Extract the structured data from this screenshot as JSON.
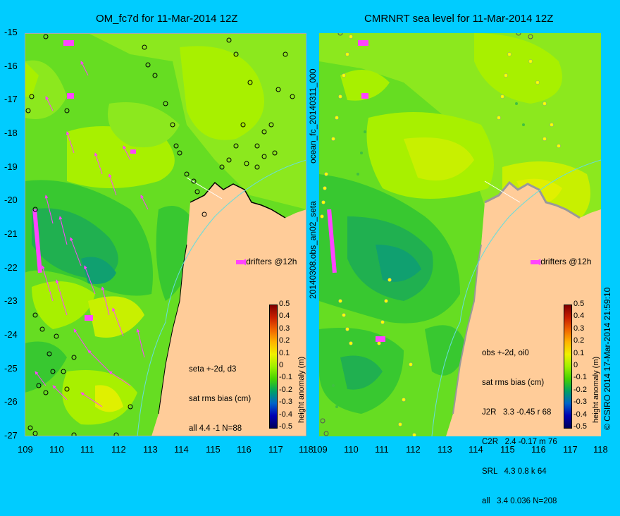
{
  "left_panel": {
    "title": "OM_fc7d for 11-Mar-2014 12Z",
    "stats": [
      "seta +-2d, d3",
      "sat rms bias (cm)",
      "all 4.4 -1 N=88"
    ],
    "drifter_label": "drifters @12h"
  },
  "right_panel": {
    "title": "CMRNRT sea level  for 11-Mar-2014 12Z",
    "stats": [
      "obs +-2d, oi0",
      "sat rms bias (cm)",
      "J2R   3.3 -0.45 r 68",
      "C2R   2.4 -0.17 m 76",
      "SRL   4.3 0.8 k 64",
      "all   3.4 0.036 N=208"
    ],
    "drifter_label": "drifters @12h"
  },
  "side_labels": {
    "left_top": "ocean_fc_20140311_000",
    "left_bottom": "20140308.obs_an02_seta",
    "right": "© CSIRO 2014  17-Mar-2014 21:59:10"
  },
  "axes": {
    "lat_ticks": [
      "-15",
      "-16",
      "-17",
      "-18",
      "-19",
      "-20",
      "-21",
      "-22",
      "-23",
      "-24",
      "-25",
      "-26",
      "-27"
    ],
    "lon_ticks": [
      "109",
      "110",
      "111",
      "112",
      "113",
      "114",
      "115",
      "116",
      "117",
      "118"
    ]
  },
  "colorbar": {
    "label": "height anomaly (m)",
    "ticks": [
      "0.5",
      "0.4",
      "0.3",
      "0.2",
      "0.1",
      "0",
      "-0.1",
      "-0.2",
      "-0.3",
      "-0.4",
      "-0.5"
    ],
    "colors": [
      "#7f0000",
      "#c81e00",
      "#f06400",
      "#ffb400",
      "#f0f000",
      "#a0f000",
      "#46d200",
      "#00a064",
      "#0064c8",
      "#0000b4",
      "#00005a"
    ]
  },
  "colors": {
    "background": "#00ccff",
    "land": "#ffcc99",
    "sea_base": "#66dd22",
    "drifter": "#ff44ff",
    "coast_track": "#66dddd"
  }
}
